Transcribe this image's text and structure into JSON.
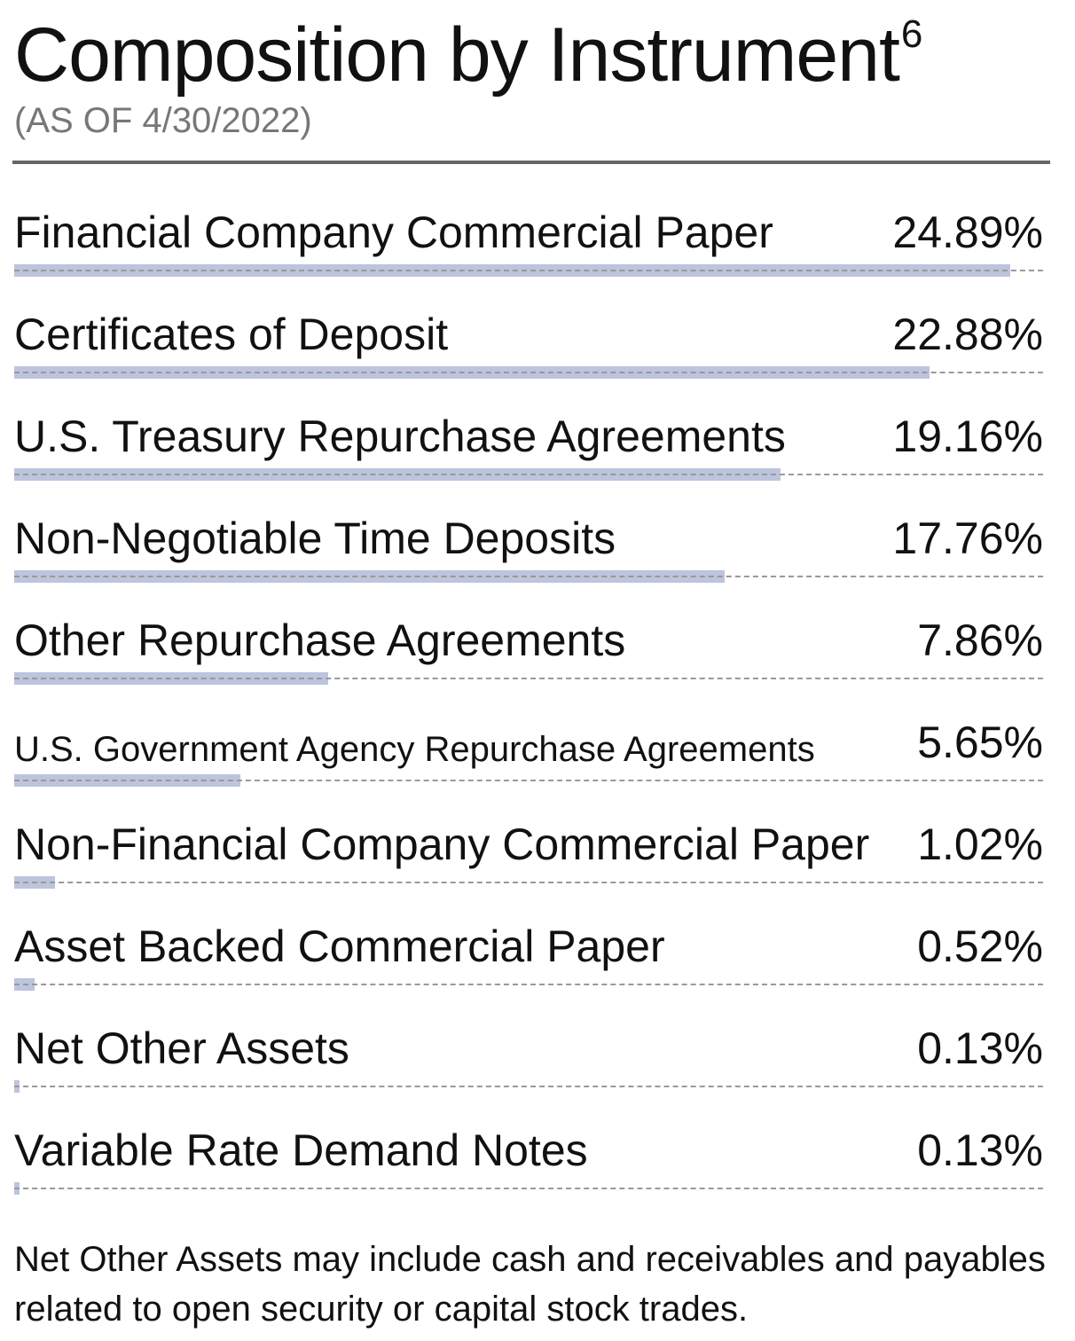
{
  "header": {
    "title": "Composition by Instrument",
    "title_footnote": "6",
    "subtitle": "(AS OF 4/30/2022)"
  },
  "chart_data": {
    "type": "bar",
    "orientation": "horizontal",
    "title": "Composition by Instrument",
    "subtitle": "(AS OF 4/30/2022)",
    "categories": [
      "Financial Company Commercial Paper",
      "Certificates of Deposit",
      "U.S. Treasury Repurchase Agreements",
      "Non-Negotiable Time Deposits",
      "Other Repurchase Agreements",
      "U.S. Government Agency Repurchase Agreements",
      "Non-Financial Company Commercial Paper",
      "Asset Backed Commercial Paper",
      "Net Other Assets",
      "Variable Rate Demand Notes"
    ],
    "values": [
      24.89,
      22.88,
      19.16,
      17.76,
      7.86,
      5.65,
      1.02,
      0.52,
      0.13,
      0.13
    ],
    "value_labels": [
      "24.89%",
      "22.88%",
      "19.16%",
      "17.76%",
      "7.86%",
      "5.65%",
      "1.02%",
      "0.52%",
      "0.13%",
      "0.13%"
    ],
    "bar_color": "#bcc4de",
    "grid": false,
    "legend": "none"
  },
  "footnote": "Net Other Assets may include cash and receivables and payables related to open security or capital stock trades."
}
